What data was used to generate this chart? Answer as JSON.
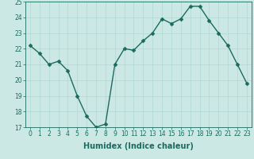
{
  "x": [
    0,
    1,
    2,
    3,
    4,
    5,
    6,
    7,
    8,
    9,
    10,
    11,
    12,
    13,
    14,
    15,
    16,
    17,
    18,
    19,
    20,
    21,
    22,
    23
  ],
  "y": [
    22.2,
    21.7,
    21.0,
    21.2,
    20.6,
    19.0,
    17.7,
    17.0,
    17.2,
    21.0,
    22.0,
    21.9,
    22.5,
    23.0,
    23.9,
    23.6,
    23.9,
    24.7,
    24.7,
    23.8,
    23.0,
    22.2,
    21.0,
    19.8
  ],
  "line_color": "#1a6b5e",
  "marker_color": "#1a6b5e",
  "bg_color": "#cce8e4",
  "grid_color": "#b0d8d2",
  "xlabel": "Humidex (Indice chaleur)",
  "ylim": [
    17,
    25
  ],
  "xlim": [
    -0.5,
    23.5
  ],
  "yticks": [
    17,
    18,
    19,
    20,
    21,
    22,
    23,
    24,
    25
  ],
  "xticks": [
    0,
    1,
    2,
    3,
    4,
    5,
    6,
    7,
    8,
    9,
    10,
    11,
    12,
    13,
    14,
    15,
    16,
    17,
    18,
    19,
    20,
    21,
    22,
    23
  ],
  "tick_label_fontsize": 5.5,
  "xlabel_fontsize": 7.0,
  "linewidth": 1.0,
  "markersize": 2.5
}
